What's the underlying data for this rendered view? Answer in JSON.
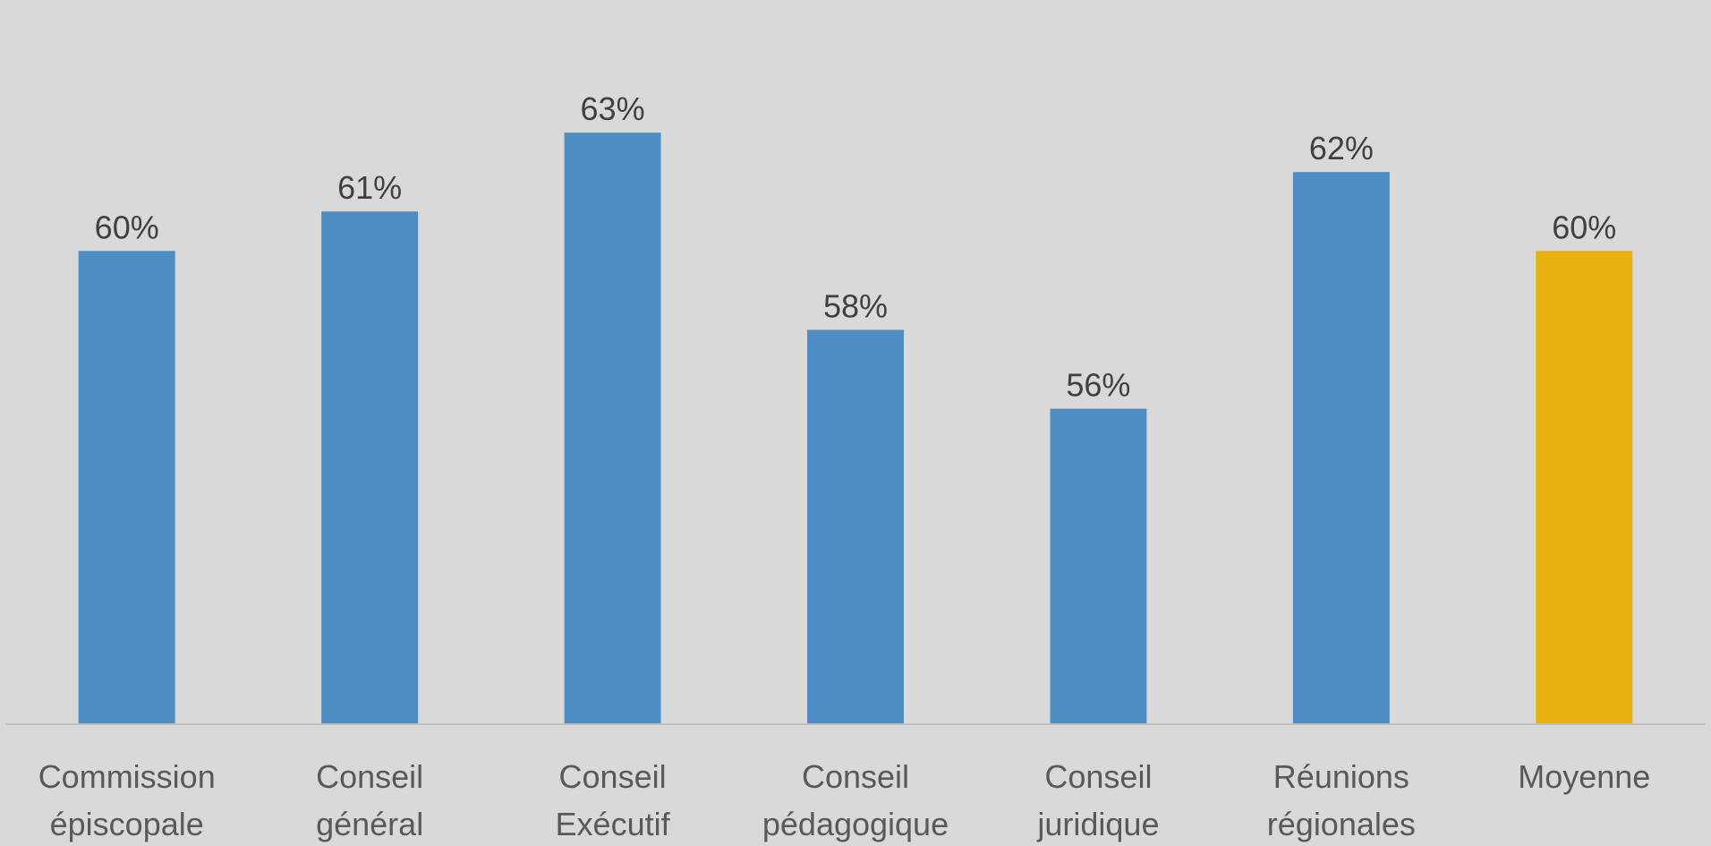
{
  "chart_data": {
    "type": "bar",
    "categories": [
      [
        "Commission",
        "épiscopale"
      ],
      [
        "Conseil",
        "général"
      ],
      [
        "Conseil",
        "Exécutif"
      ],
      [
        "Conseil",
        "pédagogique"
      ],
      [
        "Conseil",
        "juridique"
      ],
      [
        "Réunions",
        "régionales"
      ],
      [
        "Moyenne"
      ]
    ],
    "values": [
      60,
      61,
      63,
      58,
      56,
      62,
      60
    ],
    "data_labels": [
      "60%",
      "61%",
      "63%",
      "58%",
      "56%",
      "62%",
      "60%"
    ],
    "bar_colors": [
      "#4f8dc5",
      "#4f8dc5",
      "#4f8dc5",
      "#4f8dc5",
      "#4f8dc5",
      "#4f8dc5",
      "#e9b012"
    ],
    "unit": "%",
    "title": "",
    "xlabel": "",
    "ylabel": "",
    "ylim": [
      48,
      65
    ],
    "grid": false,
    "legend": false
  },
  "colors": {
    "background": "#d9d9d9",
    "axis": "#bfbfbf",
    "bar_default": "#4f8dc5",
    "bar_highlight": "#e9b012"
  }
}
